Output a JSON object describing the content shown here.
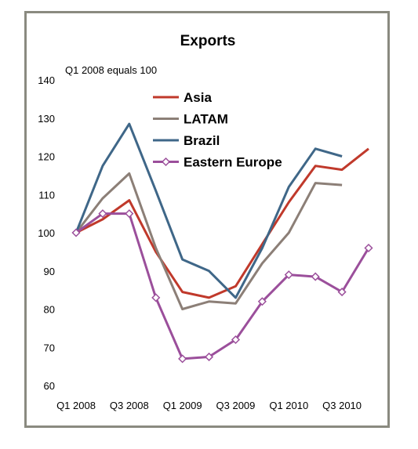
{
  "chart_data": {
    "type": "line",
    "title": "Exports",
    "subtitle": "Q1 2008 equals 100",
    "x": [
      "Q1 2008",
      "Q2 2008",
      "Q3 2008",
      "Q4 2008",
      "Q1 2009",
      "Q2 2009",
      "Q3 2009",
      "Q4 2009",
      "Q1 2010",
      "Q2 2010",
      "Q3 2010",
      "Q4 2010"
    ],
    "x_tick_labels": [
      "Q1 2008",
      "Q3 2008",
      "Q1 2009",
      "Q3 2009",
      "Q1 2010",
      "Q3 2010"
    ],
    "ylim": [
      60,
      140
    ],
    "y_ticks": [
      60,
      70,
      80,
      90,
      100,
      110,
      120,
      130,
      140
    ],
    "grid": false,
    "legend_position": "top-right",
    "series": [
      {
        "name": "Asia",
        "color": "#c0392b",
        "marker": "none",
        "values": [
          100,
          103.5,
          108.5,
          95,
          84.5,
          83,
          86,
          97,
          108,
          117.5,
          116.5,
          122
        ]
      },
      {
        "name": "LATAM",
        "color": "#8c7f77",
        "marker": "none",
        "values": [
          100,
          109,
          115.5,
          96,
          80,
          82,
          81.5,
          92,
          100,
          113,
          112.5,
          null
        ]
      },
      {
        "name": "Brazil",
        "color": "#3f6788",
        "marker": "none",
        "values": [
          100,
          117.5,
          128.5,
          111,
          93,
          90,
          83,
          96,
          112,
          122,
          120,
          null
        ]
      },
      {
        "name": "Eastern Europe",
        "color": "#9b4f9b",
        "marker": "diamond",
        "values": [
          100,
          105,
          105,
          83,
          67,
          67.5,
          72,
          82,
          89,
          88.5,
          84.5,
          96
        ]
      }
    ]
  }
}
